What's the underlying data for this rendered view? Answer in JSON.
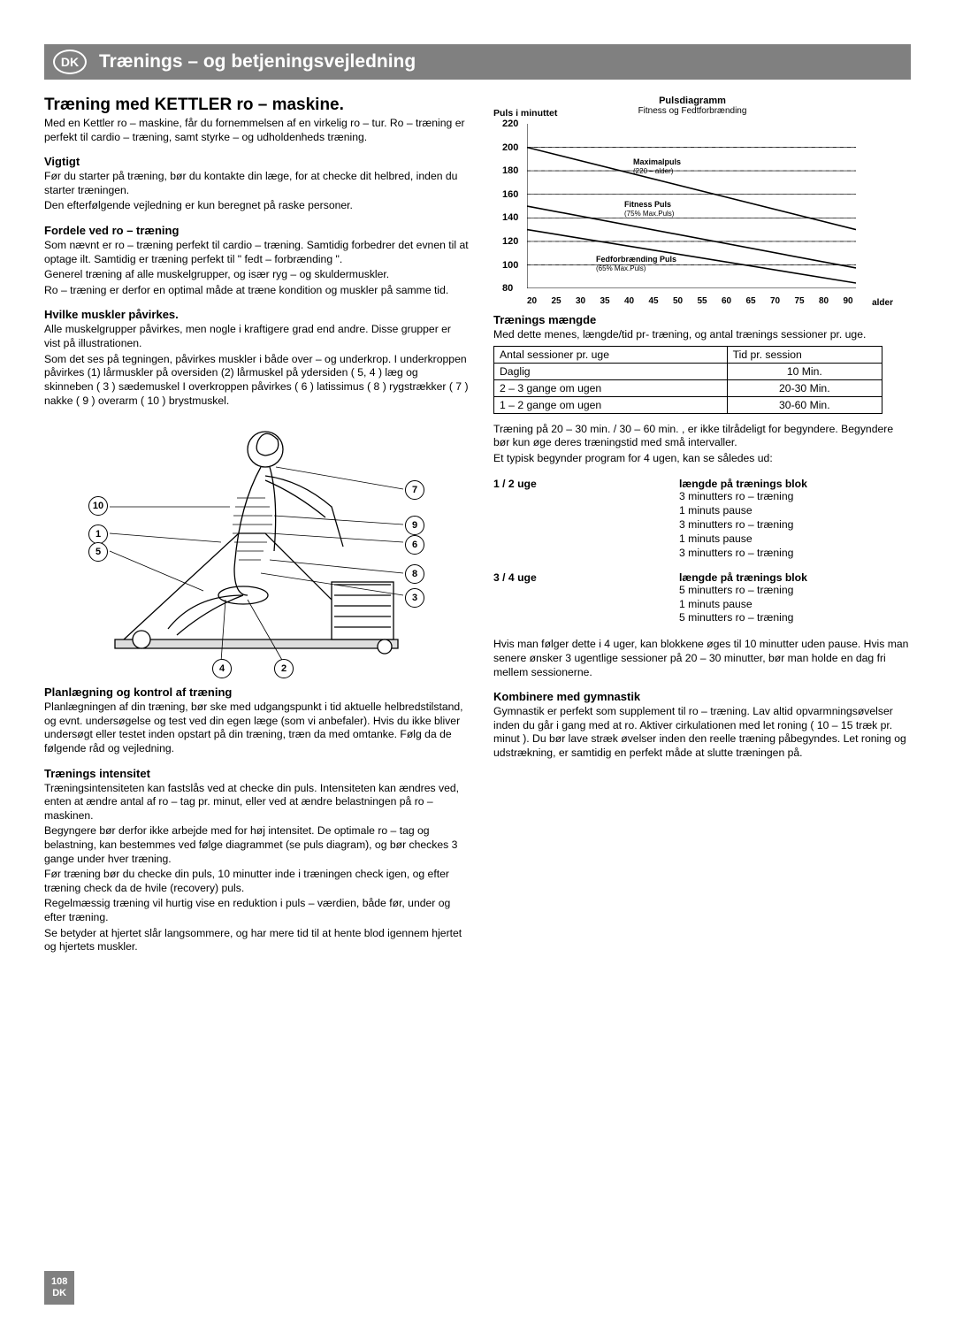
{
  "header": {
    "dk": "DK",
    "title": "Trænings – og betjeningsvejledning"
  },
  "left": {
    "main": "Træning med KETTLER ro – maskine.",
    "intro": "Med en Kettler ro – maskine, får du fornemmelsen af en virkelig ro – tur. Ro – træning er perfekt til cardio – træning, samt styrke – og udholdenheds træning.",
    "s1h": "Vigtigt",
    "s1p1": "Før du starter på træning, bør du kontakte din læge, for at checke dit helbred, inden du starter træningen.",
    "s1p2": "Den efterfølgende vejledning er kun beregnet på raske personer.",
    "s2h": "Fordele ved ro – træning",
    "s2p1": "Som nævnt er ro – træning perfekt til cardio – træning. Samtidig forbedrer det evnen til at optage ilt. Samtidig er træning perfekt til  \" fedt – forbrænding \".",
    "s2p2": "Generel træning af alle muskelgrupper, og især ryg – og skuldermuskler.",
    "s2p3": "Ro – træning er derfor en optimal måde at træne kondition og muskler på samme tid.",
    "s3h": "Hvilke muskler påvirkes.",
    "s3p1": "Alle muskelgrupper påvirkes, men nogle i kraftigere grad end andre. Disse grupper er vist på illustrationen.",
    "s3p2": "Som det ses på tegningen, påvirkes muskler i både over – og underkrop.  I underkroppen påvirkes (1) lårmuskler på oversiden (2) lårmuskel på ydersiden ( 5, 4 ) læg og skinneben ( 3 ) sædemuskel I overkroppen påvirkes  ( 6 ) latissimus  ( 8 ) rygstrækker  ( 7 ) nakke ( 9 ) overarm  ( 10 ) brystmuskel.",
    "s4h": "Planlægning og kontrol af træning",
    "s4p": "Planlægningen af din træning, bør ske med udgangspunkt i tid aktuelle helbredstilstand, og evnt. undersøgelse og test ved din egen læge (som vi anbefaler). Hvis du ikke bliver undersøgt eller testet inden opstart på din træning, træn da med omtanke. Følg da de følgende råd og vejledning.",
    "s5h": "Trænings intensitet",
    "s5p1": "Træningsintensiteten kan fastslås ved at checke din puls. Intensiteten kan ændres ved, enten at ændre antal af ro – tag pr. minut, eller ved at ændre belastningen på ro – maskinen.",
    "s5p2": "Begyngere bør derfor ikke arbejde med for høj intensitet. De optimale ro – tag og belastning, kan bestemmes ved følge diagrammet (se puls diagram), og bør checkes 3 gange under hver træning.",
    "s5p3": "Før træning bør du checke din puls, 10 minutter inde i træningen check igen, og efter træning check da de hvile (recovery) puls.",
    "s5p4": "Regelmæssig træning vil hurtig vise en reduktion i puls – værdien, både før, under og efter træning.",
    "s5p5": "Se betyder at hjertet slår langsommere, og har mere tid til at hente blod igennem hjertet og hjertets muskler."
  },
  "muscles": {
    "m1": "1",
    "m2": "2",
    "m3": "3",
    "m4": "4",
    "m5": "5",
    "m6": "6",
    "m7": "7",
    "m8": "8",
    "m9": "9",
    "m10": "10"
  },
  "chart": {
    "title": "Pulsdiagramm",
    "sub": "Fitness og Fedtforbrænding",
    "ylabel": "Puls i minuttet",
    "xlabel_right": "alder",
    "yticks": [
      "220",
      "200",
      "180",
      "160",
      "140",
      "120",
      "100",
      "80"
    ],
    "xticks": [
      "20",
      "25",
      "30",
      "35",
      "40",
      "45",
      "50",
      "55",
      "60",
      "65",
      "70",
      "75",
      "80",
      "90"
    ],
    "curve1": "Maximalpuls",
    "curve1s": "(220 – alder)",
    "curve2": "Fitness Puls",
    "curve2s": "(75% Max.Puls)",
    "curve3": "Fedforbrænding Puls",
    "curve3s": "(65% Max.Puls)"
  },
  "right": {
    "trh": "Trænings mængde",
    "trp": "Med dette menes, længde/tid pr- træning, og antal trænings sessioner pr. uge.",
    "th1": "Antal sessioner pr. uge",
    "th2": "Tid pr. session",
    "r1a": "Daglig",
    "r1b": "10 Min.",
    "r2a": "2 – 3 gange om ugen",
    "r2b": "20-30 Min.",
    "r3a": "1 – 2 gange om ugen",
    "r3b": "30-60 Min.",
    "afterTable1": "Træning på 20 – 30 min.  /  30 – 60 min. , er ikke tilrådeligt for begyndere. Begyndere bør kun øge deres træningstid med små intervaller.",
    "afterTable2": "Et typisk begynder program for 4 ugen, kan se således ud:",
    "p1label": "1 / 2 uge",
    "p1head": "længde på trænings blok",
    "p1lines": "3 minutters ro – træning\n1 minuts pause\n3 minutters ro – træning\n1 minuts pause\n3 minutters ro – træning",
    "p2label": "3 / 4 uge",
    "p2head": "længde på trænings blok",
    "p2lines": "5 minutters ro – træning\n1 minuts pause\n5 minutters ro – træning",
    "afterProg": "Hvis man følger dette i 4 uger, kan blokkene øges til 10 minutter uden pause. Hvis man senere ønsker 3 ugentlige sessioner på 20 – 30 minutter, bør man holde en dag fri mellem sessionerne.",
    "gymh": "Kombinere med gymnastik",
    "gymp": "Gymnastik er perfekt som supplement til ro – træning. Lav altid opvarmningsøvelser inden du går i gang med at ro. Aktiver cirkulationen med let roning ( 10 – 15 træk pr. minut ). Du bør lave stræk øvelser inden den reelle træning påbegyndes. Let roning og udstrækning,  er samtidig en perfekt måde at slutte træningen på."
  },
  "footer": {
    "pg": "108",
    "lang": "DK"
  }
}
